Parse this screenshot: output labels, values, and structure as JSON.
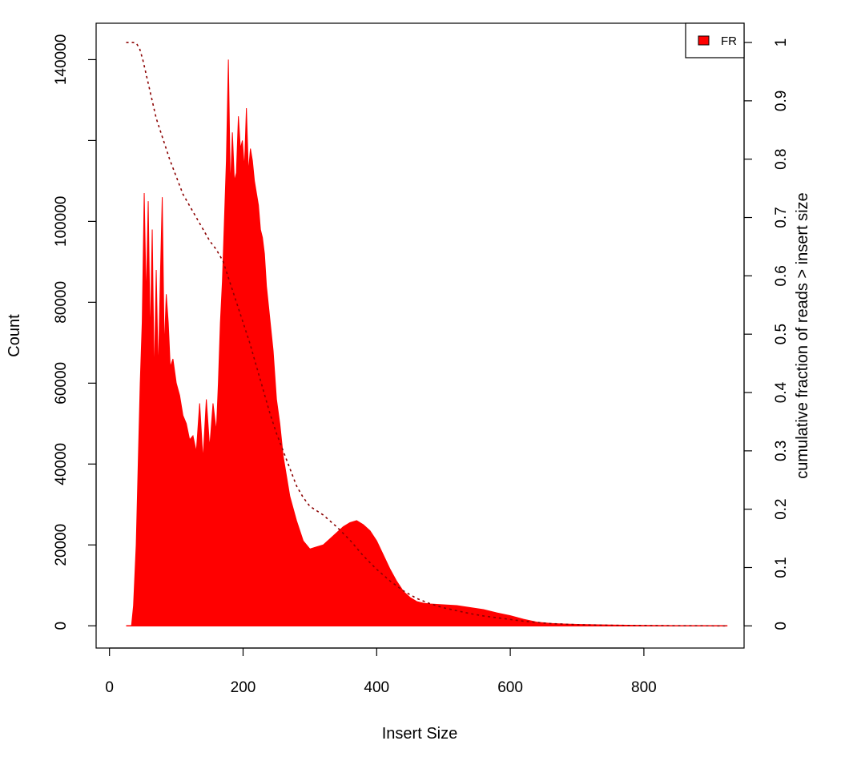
{
  "chart_data": {
    "type": "area",
    "xlabel": "Insert Size",
    "ylabel": "Count",
    "y2label": "cumulative fraction of reads > insert size",
    "xlim": [
      -20,
      950
    ],
    "ylim": [
      -5500,
      149000
    ],
    "y2lim": [
      -0.038,
      1.033
    ],
    "x_ticks": [
      0,
      200,
      400,
      600,
      800
    ],
    "y_ticks": [
      0,
      20000,
      40000,
      60000,
      80000,
      100000,
      120000,
      140000
    ],
    "y_tick_labels": [
      "0",
      "20000",
      "40000",
      "60000",
      "80000",
      "100000",
      "",
      "140000"
    ],
    "y2_ticks": [
      0,
      0.1,
      0.2,
      0.3,
      0.4,
      0.5,
      0.6,
      0.7,
      0.8,
      0.9,
      1
    ],
    "grid": false,
    "legend": {
      "position": "top-right",
      "entries": [
        {
          "label": "FR",
          "color": "#ff0000"
        }
      ]
    },
    "series": [
      {
        "name": "FR",
        "kind": "histogram",
        "color": "#ff0000",
        "x": [
          25,
          33,
          36,
          40,
          43,
          46,
          49,
          52,
          55,
          58,
          61,
          64,
          67,
          70,
          73,
          76,
          79,
          82,
          85,
          88,
          91,
          95,
          100,
          105,
          110,
          115,
          120,
          125,
          130,
          135,
          140,
          145,
          150,
          155,
          160,
          163,
          166,
          169,
          172,
          175,
          178,
          181,
          184,
          187,
          190,
          193,
          196,
          199,
          202,
          205,
          208,
          211,
          214,
          217,
          220,
          223,
          226,
          229,
          232,
          235,
          240,
          245,
          250,
          255,
          260,
          270,
          280,
          290,
          300,
          310,
          320,
          330,
          340,
          350,
          360,
          370,
          380,
          390,
          400,
          410,
          420,
          430,
          440,
          450,
          460,
          470,
          480,
          490,
          500,
          520,
          540,
          560,
          580,
          600,
          620,
          640,
          660,
          680,
          700,
          750,
          800,
          850,
          900,
          925
        ],
        "values": [
          0,
          0,
          5000,
          20000,
          40000,
          60000,
          75000,
          107000,
          80000,
          105000,
          70000,
          98000,
          60000,
          88000,
          62000,
          85000,
          106000,
          68000,
          82000,
          75000,
          64000,
          66000,
          60000,
          57000,
          52000,
          50000,
          46000,
          47000,
          43000,
          55000,
          41000,
          56000,
          44000,
          55000,
          48000,
          60000,
          75000,
          85000,
          100000,
          115000,
          140000,
          108000,
          122000,
          110000,
          112000,
          126000,
          118000,
          120000,
          113000,
          128000,
          112000,
          118000,
          115000,
          110000,
          107000,
          104000,
          98000,
          96000,
          92000,
          84000,
          76000,
          68000,
          56000,
          50000,
          42000,
          32000,
          26000,
          21000,
          19000,
          19500,
          20000,
          21500,
          23000,
          24500,
          25500,
          26000,
          25000,
          23500,
          21000,
          17500,
          14000,
          11000,
          8500,
          7000,
          6000,
          5600,
          5400,
          5300,
          5200,
          5000,
          4500,
          4000,
          3200,
          2500,
          1600,
          900,
          600,
          450,
          350,
          200,
          100,
          50,
          20,
          0
        ]
      },
      {
        "name": "cumulative fraction of reads > insert size",
        "kind": "line",
        "axis": "right",
        "color": "#8b0000",
        "dash": "dotted",
        "x": [
          25,
          35,
          40,
          45,
          50,
          60,
          70,
          80,
          90,
          100,
          110,
          120,
          130,
          140,
          150,
          160,
          170,
          180,
          190,
          200,
          210,
          220,
          230,
          240,
          250,
          260,
          270,
          280,
          290,
          300,
          320,
          340,
          360,
          380,
          400,
          420,
          440,
          460,
          480,
          500,
          520,
          540,
          560,
          580,
          600,
          620,
          640,
          660,
          680,
          700,
          750,
          800,
          850,
          900,
          925
        ],
        "values": [
          1.0,
          1.0,
          0.999,
          0.99,
          0.97,
          0.92,
          0.87,
          0.835,
          0.8,
          0.77,
          0.74,
          0.72,
          0.7,
          0.68,
          0.66,
          0.645,
          0.625,
          0.59,
          0.555,
          0.52,
          0.485,
          0.445,
          0.405,
          0.365,
          0.33,
          0.3,
          0.27,
          0.24,
          0.22,
          0.205,
          0.19,
          0.17,
          0.147,
          0.12,
          0.097,
          0.077,
          0.06,
          0.047,
          0.038,
          0.031,
          0.026,
          0.021,
          0.017,
          0.014,
          0.011,
          0.008,
          0.006,
          0.004,
          0.003,
          0.002,
          0.001,
          0.0005,
          0.0002,
          0.0001,
          0
        ]
      }
    ]
  }
}
